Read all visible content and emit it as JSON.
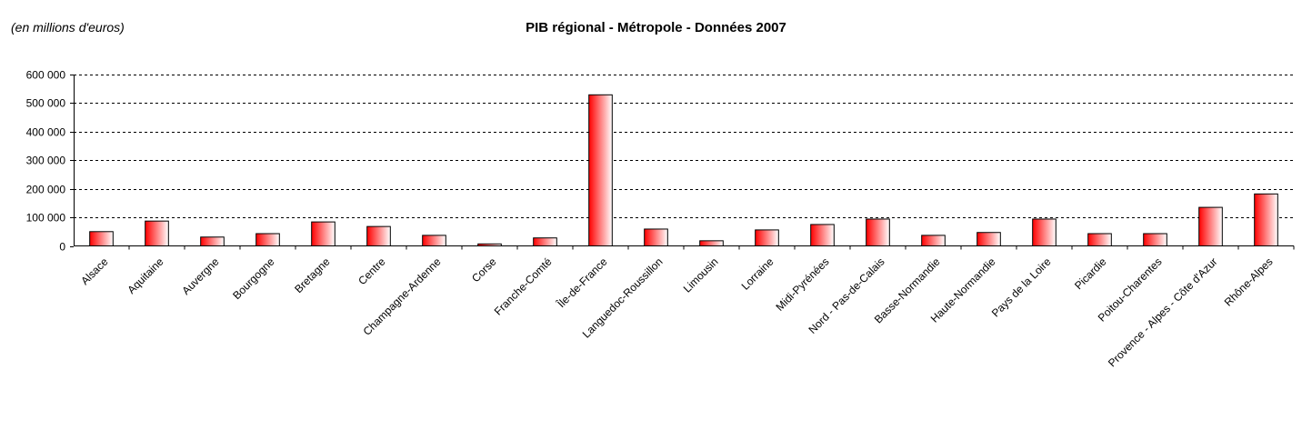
{
  "chart_data": {
    "type": "bar",
    "title": "PIB régional - Métropole - Données 2007",
    "unit_note": "(en millions d'euros)",
    "xlabel": "",
    "ylabel": "",
    "ylim": [
      0,
      600000
    ],
    "yticks": [
      0,
      100000,
      200000,
      300000,
      400000,
      500000,
      600000
    ],
    "ytick_labels": [
      "0",
      "100 000",
      "200 000",
      "300 000",
      "400 000",
      "500 000",
      "600 000"
    ],
    "grid": true,
    "legend": "none",
    "categories": [
      "Alsace",
      "Aquitaine",
      "Auvergne",
      "Bourgogne",
      "Bretagne",
      "Centre",
      "Champagne-Ardenne",
      "Corse",
      "Franche-Comté",
      "Île-de-France",
      "Languedoc-Roussillon",
      "Limousin",
      "Lorraine",
      "Midi-Pyrénées",
      "Nord - Pas-de-Calais",
      "Basse-Normandie",
      "Haute-Normandie",
      "Pays de la Loire",
      "Picardie",
      "Poitou-Charentes",
      "Provence - Alpes - Côte d'Azur",
      "Rhône-Alpes"
    ],
    "values": [
      50000,
      87000,
      31000,
      43000,
      84000,
      68000,
      37000,
      7000,
      28000,
      529000,
      59000,
      18000,
      56000,
      75000,
      94000,
      37000,
      47000,
      94000,
      43000,
      43000,
      135000,
      182000
    ],
    "colors": {
      "bar_start": "#ff0000",
      "bar_end": "#ffffff",
      "outline": "#000000"
    }
  }
}
